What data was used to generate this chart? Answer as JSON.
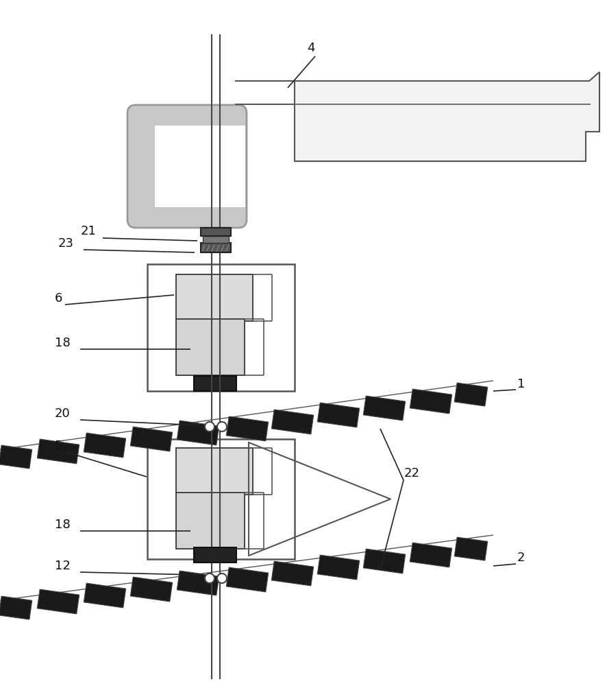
{
  "bg_color": "#ffffff",
  "lc": "#555555",
  "dc": "#222222",
  "gc": "#c8c8c8",
  "chain_color": "#1a1a1a",
  "box_fill": "#e0e0e0",
  "box_fill2": "#d0d0d0",
  "bear_fill": "#222222",
  "label_fs": 13
}
